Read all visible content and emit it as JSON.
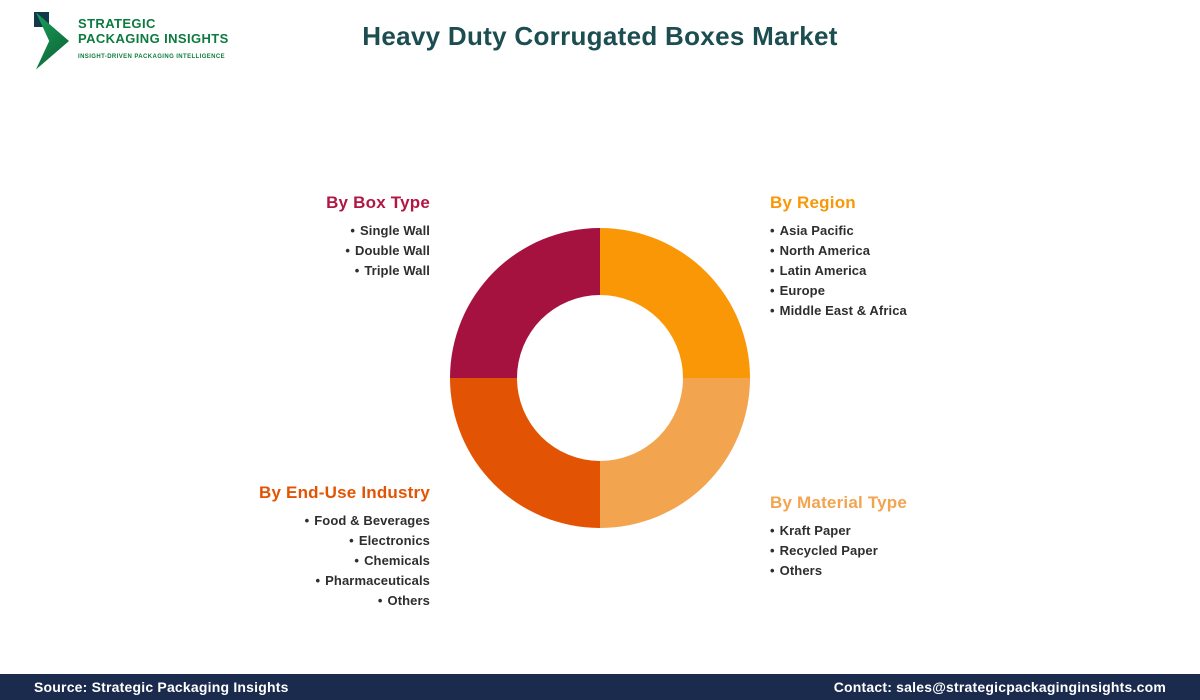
{
  "logo": {
    "line1": "STRATEGIC",
    "line2": "PACKAGING INSIGHTS",
    "tagline": "INSIGHT-DRIVEN PACKAGING INTELLIGENCE",
    "brand_green": "#0B7B3F"
  },
  "header": {
    "title": "Heavy Duty Corrugated Boxes Market",
    "title_color": "#1C4D50"
  },
  "segments": {
    "box_type": {
      "title": "By Box Type",
      "color": "#B11743",
      "items": [
        "Single Wall",
        "Double Wall",
        "Triple Wall"
      ]
    },
    "region": {
      "title": "By Region",
      "color": "#F99706",
      "items": [
        "Asia Pacific",
        "North America",
        "Latin America",
        "Europe",
        "Middle East & Africa"
      ]
    },
    "end_use": {
      "title": "By End-Use Industry",
      "color": "#E25303",
      "items": [
        "Food & Beverages",
        "Electronics",
        "Chemicals",
        "Pharmaceuticals",
        "Others"
      ]
    },
    "material": {
      "title": "By Material Type",
      "color": "#F2A44E",
      "items": [
        "Kraft Paper",
        "Recycled Paper",
        "Others"
      ]
    }
  },
  "donut": {
    "type": "donut-decoration",
    "quadrants": [
      {
        "position": "top-right",
        "segment": "By Region",
        "color": "#F99706"
      },
      {
        "position": "bottom-right",
        "segment": "By Material Type",
        "color": "#F2A44E"
      },
      {
        "position": "bottom-left",
        "segment": "By End-Use Industry",
        "color": "#E25303"
      },
      {
        "position": "top-left",
        "segment": "By Box Type",
        "color": "#A6123F"
      }
    ]
  },
  "footer": {
    "source": "Source: Strategic Packaging Insights",
    "contact": "Contact: sales@strategicpackaginginsights.com",
    "bar_color": "#1B2B4E"
  }
}
